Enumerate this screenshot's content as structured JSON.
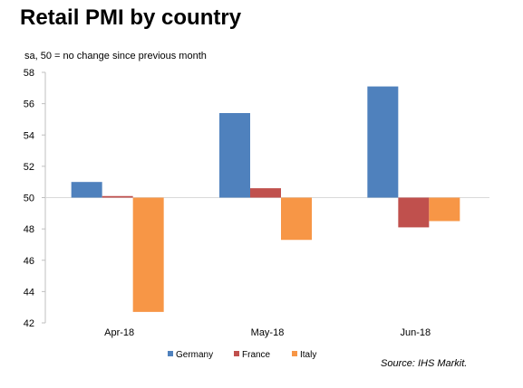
{
  "title": "Retail PMI by country",
  "subtitle": "sa, 50 = no change since previous month",
  "source": "Source: IHS Markit.",
  "colors": {
    "Germany": "#4f81bd",
    "France": "#c0504d",
    "Italy": "#f79646"
  },
  "chart_data": {
    "type": "bar",
    "title": "Retail PMI by country",
    "subtitle": "sa, 50 = no change since previous month",
    "categories": [
      "Apr-18",
      "May-18",
      "Jun-18"
    ],
    "baseline": 50,
    "ylim": [
      42,
      58
    ],
    "yticks": [
      42,
      44,
      46,
      48,
      50,
      52,
      54,
      56,
      58
    ],
    "grid": false,
    "legend_position": "bottom",
    "series": [
      {
        "name": "Germany",
        "values": [
          51.0,
          55.4,
          57.1
        ]
      },
      {
        "name": "France",
        "values": [
          50.1,
          50.6,
          48.1
        ]
      },
      {
        "name": "Italy",
        "values": [
          42.7,
          47.3,
          48.5
        ]
      }
    ]
  }
}
